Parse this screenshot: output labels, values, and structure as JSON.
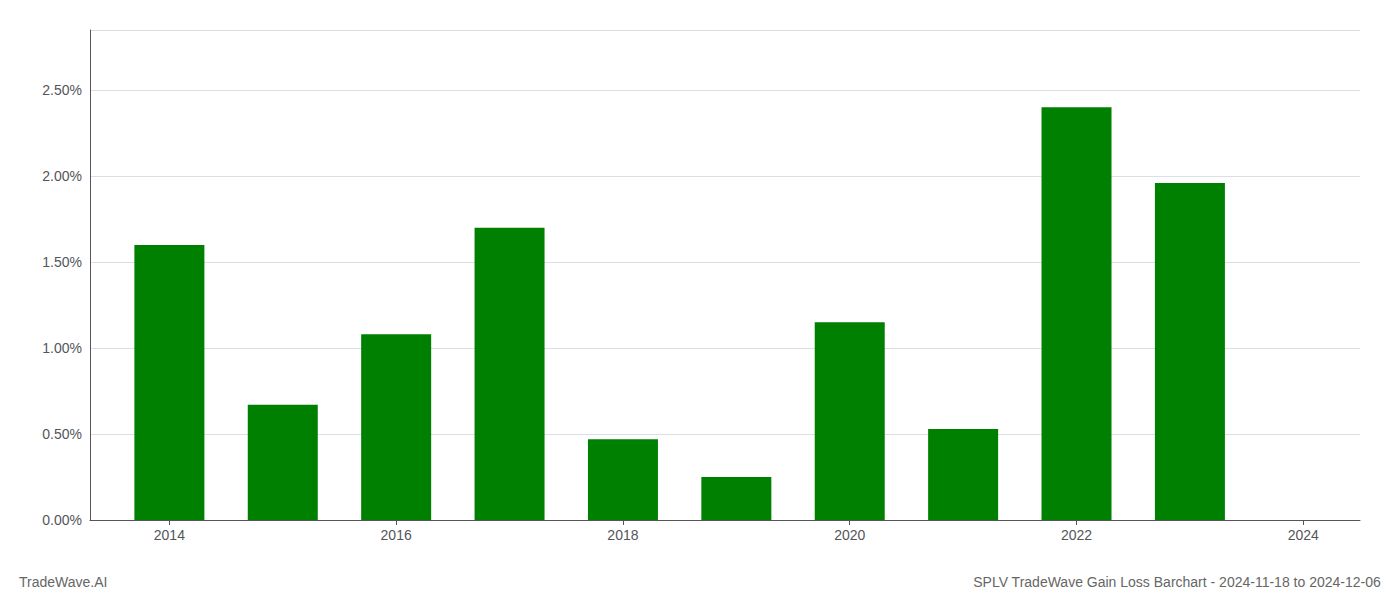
{
  "chart_data": {
    "type": "bar",
    "title": "SPLV TradeWave Gain Loss Barchart - 2024-11-18 to 2024-12-06",
    "annotations": [
      "TradeWave.AI"
    ],
    "x": [
      2014,
      2015,
      2016,
      2017,
      2018,
      2019,
      2020,
      2021,
      2022,
      2023
    ],
    "values": [
      0.016,
      0.0067,
      0.0108,
      0.017,
      0.0047,
      0.0025,
      0.0115,
      0.0053,
      0.024,
      0.0196
    ],
    "color": "#008000",
    "xlim": [
      2013.3,
      2024.5
    ],
    "xticks": [
      2014,
      2016,
      2018,
      2020,
      2022,
      2024
    ],
    "ylim": [
      0,
      0.0285
    ],
    "yticks": [
      {
        "value": 0.0,
        "label": "0.00%"
      },
      {
        "value": 0.005,
        "label": "0.50%"
      },
      {
        "value": 0.01,
        "label": "1.00%"
      },
      {
        "value": 0.015,
        "label": "1.50%"
      },
      {
        "value": 0.02,
        "label": "2.00%"
      },
      {
        "value": 0.025,
        "label": "2.50%"
      }
    ],
    "grid": true
  }
}
